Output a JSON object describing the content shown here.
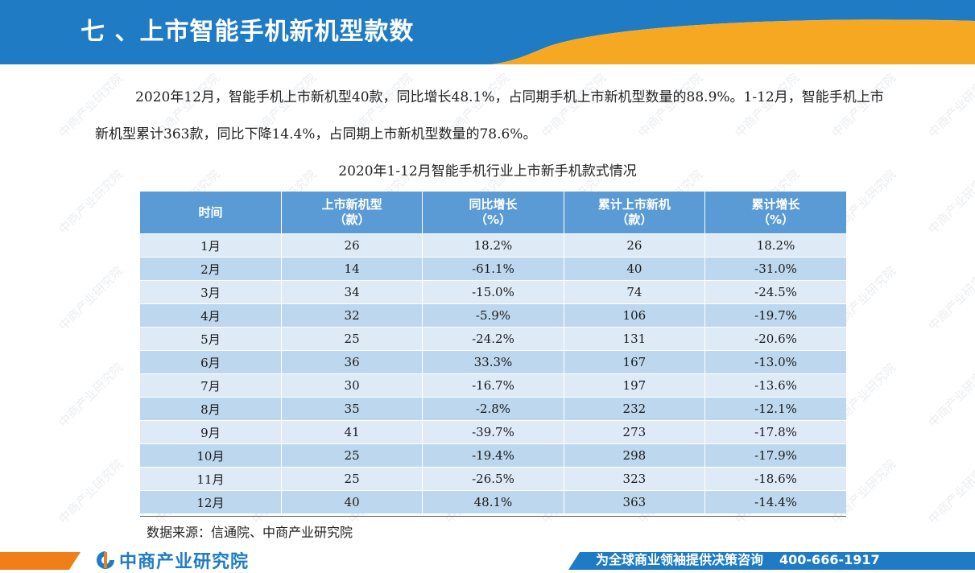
{
  "header": {
    "title": "七 、上市智能手机新机型款数"
  },
  "paragraph": "2020年12月，智能手机上市新机型40款，同比增长48.1%，占同期手机上市新机型数量的88.9%。1-12月，智能手机上市新机型累计363款，同比下降14.4%，占同期上市新机型数量的78.6%。",
  "table": {
    "caption": "2020年1-12月智能手机行业上市新手机款式情况",
    "headers": [
      {
        "line1": "时间",
        "line2": ""
      },
      {
        "line1": "上市新机型",
        "line2": "（款）"
      },
      {
        "line1": "同比增长",
        "line2": "（%）"
      },
      {
        "line1": "累计上市新机",
        "line2": "（款）"
      },
      {
        "line1": "累计增长",
        "line2": "（%）"
      }
    ],
    "rows": [
      [
        "1月",
        "26",
        "18.2%",
        "26",
        "18.2%"
      ],
      [
        "2月",
        "14",
        "-61.1%",
        "40",
        "-31.0%"
      ],
      [
        "3月",
        "34",
        "-15.0%",
        "74",
        "-24.5%"
      ],
      [
        "4月",
        "32",
        "-5.9%",
        "106",
        "-19.7%"
      ],
      [
        "5月",
        "25",
        "-24.2%",
        "131",
        "-20.6%"
      ],
      [
        "6月",
        "36",
        "33.3%",
        "167",
        "-13.0%"
      ],
      [
        "7月",
        "30",
        "-16.7%",
        "197",
        "-13.6%"
      ],
      [
        "8月",
        "35",
        "-2.8%",
        "232",
        "-12.1%"
      ],
      [
        "9月",
        "41",
        "-39.7%",
        "273",
        "-17.8%"
      ],
      [
        "10月",
        "25",
        "-19.4%",
        "298",
        "-17.9%"
      ],
      [
        "11月",
        "25",
        "-26.5%",
        "323",
        "-18.6%"
      ],
      [
        "12月",
        "40",
        "48.1%",
        "363",
        "-14.4%"
      ]
    ]
  },
  "source": "数据来源：信通院、中商产业研究院",
  "footer": {
    "brand": "中商产业研究院",
    "slogan": "为全球商业领袖提供决策咨询",
    "phone": "400-666-1917"
  },
  "watermark": "中商产业研究院",
  "colors": {
    "header_blue": "#1f7cc4",
    "accent_orange": "#f7a823",
    "table_header": "#5b9bd5",
    "row_light": "#deebf7",
    "row_dark": "#bdd7ee"
  }
}
